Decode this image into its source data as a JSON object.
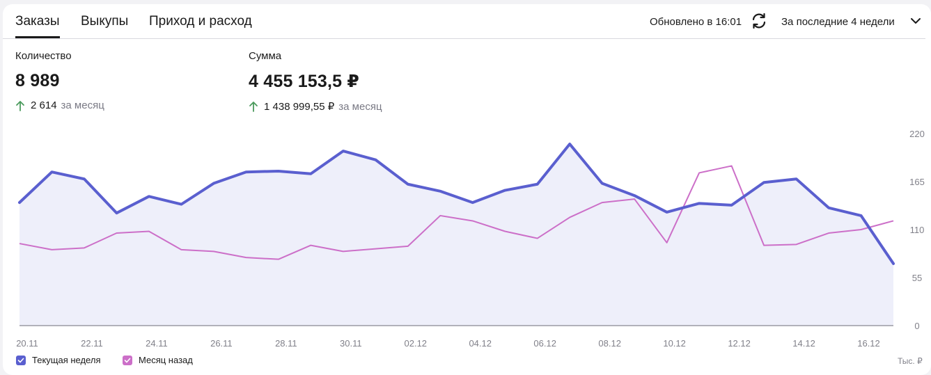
{
  "tabs": [
    {
      "label": "Заказы",
      "active": true
    },
    {
      "label": "Выкупы",
      "active": false
    },
    {
      "label": "Приход и расход",
      "active": false
    }
  ],
  "header": {
    "updated": "Обновлено в 16:01",
    "period": "За последние 4 недели"
  },
  "metrics": {
    "quantity": {
      "label": "Количество",
      "value": "8 989",
      "delta": "2 614",
      "suffix": "за месяц"
    },
    "sum": {
      "label": "Сумма",
      "value": "4 455 153,5 ₽",
      "delta": "1 438 999,55 ₽",
      "suffix": "за месяц"
    }
  },
  "colors": {
    "current": "#5a5fcf",
    "previous": "#cc6fc8",
    "area": "#eeeffa",
    "up_arrow": "#4a9a5c"
  },
  "legend": {
    "current": "Текущая неделя",
    "previous": "Месяц назад",
    "unit": "Тыс. ₽"
  },
  "chart_data": {
    "type": "line",
    "x_ticks": [
      "20.11",
      "22.11",
      "24.11",
      "26.11",
      "28.11",
      "30.11",
      "02.12",
      "04.12",
      "06.12",
      "08.12",
      "10.12",
      "12.12",
      "14.12",
      "16.12"
    ],
    "y_ticks": [
      "220",
      "165",
      "110",
      "55",
      "0"
    ],
    "ylim": [
      0,
      220
    ],
    "legend_position": "bottom-left",
    "series": [
      {
        "name": "Текущая неделя",
        "values": [
          141,
          176,
          168,
          129,
          148,
          139,
          163,
          176,
          177,
          174,
          200,
          190,
          162,
          154,
          141,
          155,
          162,
          208,
          163,
          149,
          130,
          140,
          138,
          164,
          168,
          135,
          126,
          71
        ],
        "fill": true
      },
      {
        "name": "Месяц назад",
        "values": [
          94,
          87,
          89,
          106,
          108,
          87,
          85,
          78,
          76,
          92,
          85,
          88,
          91,
          126,
          120,
          108,
          100,
          124,
          141,
          145,
          95,
          175,
          183,
          92,
          93,
          106,
          110,
          120
        ],
        "fill": false
      }
    ]
  }
}
